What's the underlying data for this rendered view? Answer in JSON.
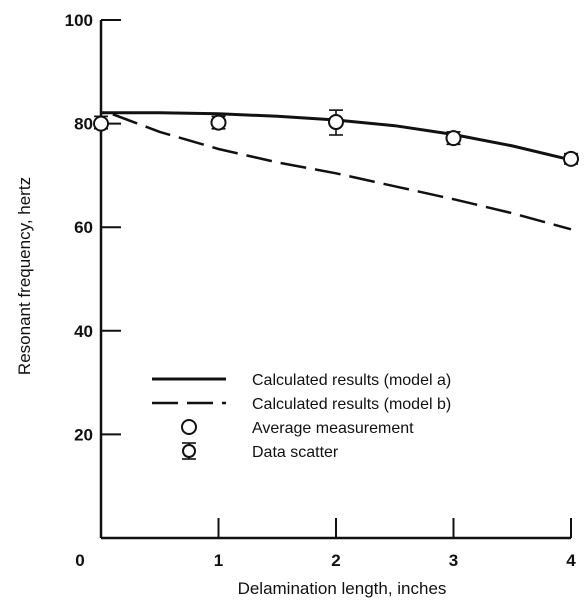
{
  "chart_data": {
    "type": "line",
    "title": "",
    "xlabel": "Delamination length, inches",
    "ylabel": "Resonant frequency, hertz",
    "xlim": [
      0,
      4
    ],
    "ylim": [
      0,
      100
    ],
    "x_ticks": [
      0,
      1,
      2,
      3,
      4
    ],
    "y_ticks": [
      20,
      40,
      60,
      80,
      100
    ],
    "x_tick_labels": [
      "0",
      "1",
      "2",
      "3",
      "4"
    ],
    "y_tick_labels": [
      "20",
      "40",
      "60",
      "80",
      "100"
    ],
    "grid": false,
    "legend_position": "center-left",
    "series": [
      {
        "name": "Calculated results (model a)",
        "style": "solid",
        "x": [
          0.0,
          0.5,
          1.0,
          1.5,
          2.0,
          2.5,
          3.0,
          3.5,
          4.0
        ],
        "y": [
          82.1,
          82.1,
          81.9,
          81.4,
          80.7,
          79.6,
          77.9,
          75.7,
          73.0
        ]
      },
      {
        "name": "Calculated results (model b)",
        "style": "dashed",
        "x": [
          0.1,
          0.5,
          1.0,
          1.5,
          2.0,
          2.5,
          3.0,
          3.5,
          4.0
        ],
        "y": [
          81.8,
          78.4,
          75.1,
          72.5,
          70.4,
          67.9,
          65.4,
          62.7,
          59.6
        ]
      },
      {
        "name": "Average measurement",
        "style": "circle-marker",
        "x": [
          0.0,
          1.0,
          2.0,
          3.0,
          4.0
        ],
        "y": [
          80.0,
          80.2,
          80.3,
          77.2,
          73.2
        ]
      },
      {
        "name": "Data scatter",
        "style": "error-bar",
        "x": [
          0.0,
          1.0,
          2.0,
          3.0,
          4.0
        ],
        "y_low": [
          79.0,
          79.0,
          77.8,
          76.0,
          72.2
        ],
        "y_high": [
          81.4,
          81.4,
          82.6,
          78.4,
          74.2
        ]
      }
    ]
  }
}
